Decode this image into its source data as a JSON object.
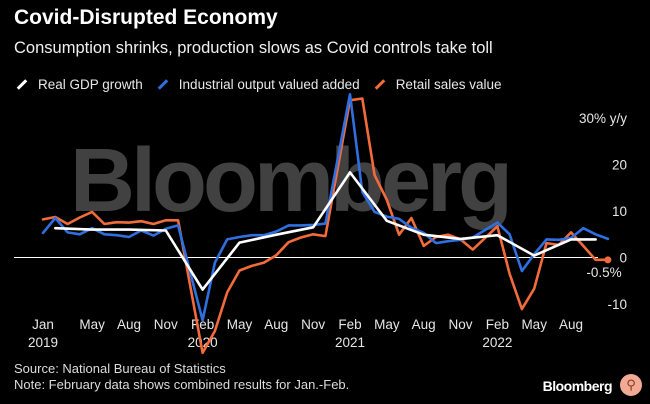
{
  "header": {
    "title": "Covid-Disrupted Economy",
    "subtitle": "Consumption shrinks, production slows as Covid controls take toll"
  },
  "legend": [
    {
      "label": "Real GDP growth",
      "color": "#ffffff"
    },
    {
      "label": "Industrial output valued added",
      "color": "#2f6fe0"
    },
    {
      "label": "Retail sales value",
      "color": "#f46b3b"
    }
  ],
  "watermark": "Bloomberg",
  "footer": {
    "source": "Source: National Bureau of Statistics",
    "note": "Note: February data shows combined results for Jan.-Feb.",
    "brand": "Bloomberg"
  },
  "chart_data": {
    "type": "line",
    "title": "Covid-Disrupted Economy",
    "ylabel": "% y/y",
    "ylim": [
      -13,
      34
    ],
    "yticks": [
      {
        "value": 30,
        "label": "30% y/y"
      },
      {
        "value": 20,
        "label": "20"
      },
      {
        "value": 10,
        "label": "10"
      },
      {
        "value": 0,
        "label": "0"
      },
      {
        "value": -10,
        "label": "-10"
      }
    ],
    "xticks": [
      {
        "month": 0,
        "label": "Jan",
        "year": "2019"
      },
      {
        "month": 4,
        "label": "May"
      },
      {
        "month": 7,
        "label": "Aug"
      },
      {
        "month": 10,
        "label": "Nov"
      },
      {
        "month": 13,
        "label": "Feb",
        "year": "2020"
      },
      {
        "month": 16,
        "label": "May"
      },
      {
        "month": 19,
        "label": "Aug"
      },
      {
        "month": 22,
        "label": "Nov"
      },
      {
        "month": 25,
        "label": "Feb",
        "year": "2021"
      },
      {
        "month": 28,
        "label": "May"
      },
      {
        "month": 31,
        "label": "Aug"
      },
      {
        "month": 34,
        "label": "Nov"
      },
      {
        "month": 37,
        "label": "Feb",
        "year": "2022"
      },
      {
        "month": 40,
        "label": "May"
      },
      {
        "month": 43,
        "label": "Aug"
      }
    ],
    "end_label": {
      "text": "-0.5%",
      "month": 46,
      "value": -0.5
    },
    "series": [
      {
        "name": "Retail sales value",
        "color": "#f46b3b",
        "x": [
          0,
          1,
          2,
          3,
          4,
          5,
          6,
          7,
          8,
          9,
          10,
          11,
          13,
          14,
          15,
          16,
          17,
          18,
          19,
          20,
          21,
          22,
          23,
          25,
          26,
          27,
          28,
          29,
          30,
          31,
          32,
          33,
          34,
          35,
          37,
          38,
          39,
          40,
          41,
          42,
          43,
          44,
          45,
          46
        ],
        "y": [
          8.2,
          8.7,
          7.2,
          8.6,
          9.8,
          7.2,
          7.6,
          7.5,
          7.8,
          7.2,
          8.0,
          8.0,
          -20.5,
          -15.8,
          -7.5,
          -2.8,
          -1.8,
          -1.1,
          0.5,
          3.3,
          4.3,
          5.0,
          4.6,
          33.8,
          34.2,
          17.7,
          12.4,
          4.9,
          8.5,
          2.5,
          4.4,
          4.9,
          3.9,
          1.7,
          6.7,
          -3.5,
          -11.1,
          -6.7,
          3.1,
          2.7,
          5.4,
          2.5,
          -0.5,
          -0.5
        ]
      },
      {
        "name": "Industrial output valued added",
        "color": "#2f6fe0",
        "x": [
          0,
          1,
          2,
          3,
          4,
          5,
          6,
          7,
          8,
          9,
          10,
          11,
          13,
          14,
          15,
          16,
          17,
          18,
          19,
          20,
          21,
          22,
          23,
          25,
          26,
          27,
          28,
          29,
          30,
          31,
          32,
          33,
          34,
          35,
          37,
          38,
          39,
          40,
          41,
          42,
          43,
          44,
          45,
          46
        ],
        "y": [
          5.3,
          8.5,
          5.4,
          5.0,
          6.3,
          5.0,
          4.8,
          4.4,
          5.8,
          4.7,
          6.2,
          6.9,
          -13.5,
          -1.1,
          3.9,
          4.4,
          4.8,
          4.8,
          5.6,
          6.9,
          6.9,
          7.0,
          7.3,
          35.1,
          14.1,
          9.8,
          8.8,
          8.3,
          6.4,
          5.3,
          3.1,
          3.5,
          3.8,
          4.3,
          7.5,
          5.0,
          -2.9,
          0.7,
          3.9,
          3.8,
          4.2,
          6.3,
          5.0,
          4.0
        ]
      },
      {
        "name": "Real GDP growth",
        "color": "#ffffff",
        "x": [
          1,
          4,
          7,
          10,
          13,
          16,
          19,
          22,
          25,
          28,
          31,
          34,
          37,
          40,
          43,
          45
        ],
        "y": [
          6.3,
          6.0,
          6.0,
          5.8,
          -6.9,
          3.2,
          4.9,
          6.5,
          18.3,
          7.9,
          4.9,
          4.0,
          4.8,
          0.4,
          3.9,
          3.9
        ]
      }
    ]
  }
}
